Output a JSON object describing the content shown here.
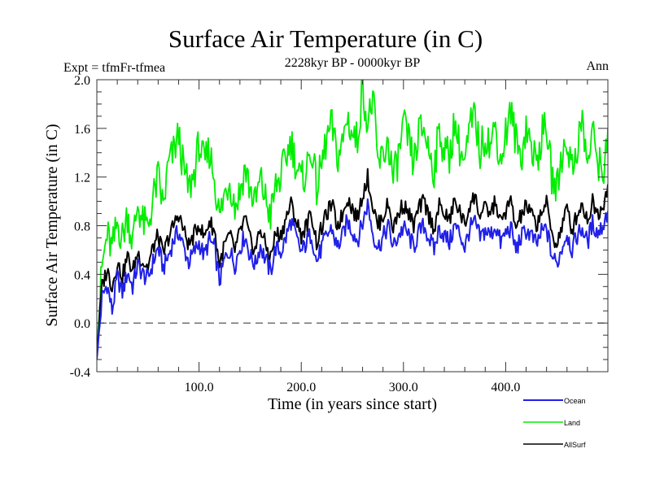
{
  "chart_data": {
    "type": "line",
    "title": "Surface Air Temperature (in C)",
    "subtitle": "2228kyr BP - 0000kyr BP",
    "left_annotation": "Expt = tfmFr-tfmea",
    "right_annotation": "Ann",
    "xlabel": "Time (in years since start)",
    "ylabel": "Surface Air Temperature (in C)",
    "xlim": [
      0,
      500
    ],
    "ylim": [
      -0.4,
      2.0
    ],
    "x_major_ticks": [
      100,
      200,
      300,
      400
    ],
    "x_tick_labels": [
      "100.0",
      "200.0",
      "300.0",
      "400.0"
    ],
    "x_minor_step": 20,
    "y_major_ticks": [
      -0.4,
      0.0,
      0.4,
      0.8,
      1.2,
      1.6,
      2.0
    ],
    "y_tick_labels": [
      "-0.4",
      "0.0",
      "0.4",
      "0.8",
      "1.2",
      "1.6",
      "2.0"
    ],
    "y_minor_step": 0.1,
    "reference_line": {
      "y": 0.0,
      "style": "dashed",
      "color": "#444444"
    },
    "grid": false,
    "legend_position": "bottom-right, below plot",
    "x": [
      0,
      5,
      10,
      15,
      20,
      25,
      30,
      35,
      40,
      45,
      50,
      55,
      60,
      65,
      70,
      75,
      80,
      85,
      90,
      95,
      100,
      105,
      110,
      115,
      120,
      125,
      130,
      135,
      140,
      145,
      150,
      155,
      160,
      165,
      170,
      175,
      180,
      185,
      190,
      195,
      200,
      205,
      210,
      215,
      220,
      225,
      230,
      235,
      240,
      245,
      250,
      255,
      260,
      265,
      270,
      275,
      280,
      285,
      290,
      295,
      300,
      305,
      310,
      315,
      320,
      325,
      330,
      335,
      340,
      345,
      350,
      355,
      360,
      365,
      370,
      375,
      380,
      385,
      390,
      395,
      400,
      405,
      410,
      415,
      420,
      425,
      430,
      435,
      440,
      445,
      450,
      455,
      460,
      465,
      470,
      475,
      480,
      485,
      490,
      495,
      500
    ],
    "series": [
      {
        "name": "Ocean",
        "color": "#2020e8",
        "values": [
          -0.3,
          0.2,
          0.32,
          0.1,
          0.38,
          0.25,
          0.42,
          0.3,
          0.48,
          0.4,
          0.36,
          0.5,
          0.62,
          0.45,
          0.55,
          0.68,
          0.75,
          0.62,
          0.5,
          0.58,
          0.66,
          0.55,
          0.68,
          0.62,
          0.34,
          0.52,
          0.6,
          0.48,
          0.62,
          0.72,
          0.55,
          0.48,
          0.64,
          0.52,
          0.42,
          0.62,
          0.58,
          0.7,
          0.84,
          0.7,
          0.58,
          0.66,
          0.74,
          0.5,
          0.62,
          0.72,
          0.78,
          0.62,
          0.7,
          0.84,
          0.76,
          0.68,
          0.82,
          0.98,
          0.74,
          0.62,
          0.7,
          0.8,
          0.62,
          0.72,
          0.78,
          0.72,
          0.62,
          0.74,
          0.8,
          0.7,
          0.6,
          0.78,
          0.72,
          0.66,
          0.8,
          0.74,
          0.62,
          0.78,
          0.82,
          0.7,
          0.76,
          0.72,
          0.8,
          0.66,
          0.74,
          0.78,
          0.6,
          0.7,
          0.76,
          0.72,
          0.64,
          0.74,
          0.78,
          0.56,
          0.48,
          0.62,
          0.74,
          0.6,
          0.72,
          0.78,
          0.66,
          0.82,
          0.74,
          0.8,
          0.92
        ]
      },
      {
        "name": "Land",
        "color": "#00ee00",
        "values": [
          -0.2,
          0.45,
          0.72,
          0.6,
          0.82,
          0.7,
          0.9,
          0.66,
          0.98,
          0.82,
          0.78,
          1.02,
          1.2,
          0.95,
          1.3,
          1.4,
          1.55,
          1.25,
          1.1,
          1.22,
          1.48,
          1.3,
          1.42,
          1.2,
          0.86,
          1.06,
          1.18,
          0.96,
          1.08,
          1.28,
          1.1,
          0.98,
          1.18,
          1.02,
          0.88,
          1.12,
          1.2,
          1.36,
          1.5,
          1.3,
          1.16,
          1.26,
          1.44,
          1.1,
          1.3,
          1.52,
          1.62,
          1.36,
          1.46,
          1.7,
          1.55,
          1.5,
          1.96,
          1.62,
          1.86,
          1.3,
          1.36,
          1.5,
          1.18,
          1.36,
          1.62,
          1.5,
          1.3,
          1.56,
          1.6,
          1.42,
          1.26,
          1.58,
          1.42,
          1.36,
          1.66,
          1.44,
          1.3,
          1.6,
          1.7,
          1.4,
          1.56,
          1.46,
          1.62,
          1.32,
          1.56,
          1.74,
          1.5,
          1.36,
          1.62,
          1.46,
          1.3,
          1.54,
          1.62,
          1.2,
          1.1,
          1.38,
          1.5,
          1.26,
          1.46,
          1.66,
          1.3,
          1.56,
          1.36,
          1.2,
          1.6
        ]
      },
      {
        "name": "AllSurf",
        "color": "#000000",
        "values": [
          -0.25,
          0.3,
          0.44,
          0.3,
          0.5,
          0.38,
          0.55,
          0.42,
          0.58,
          0.5,
          0.46,
          0.62,
          0.72,
          0.56,
          0.7,
          0.8,
          0.9,
          0.76,
          0.64,
          0.72,
          0.82,
          0.7,
          0.84,
          0.76,
          0.48,
          0.64,
          0.72,
          0.6,
          0.74,
          0.86,
          0.68,
          0.6,
          0.78,
          0.64,
          0.54,
          0.74,
          0.72,
          0.86,
          0.98,
          0.84,
          0.72,
          0.8,
          0.9,
          0.66,
          0.78,
          0.9,
          0.98,
          0.8,
          0.88,
          1.04,
          0.94,
          0.86,
          1.06,
          1.2,
          0.96,
          0.8,
          0.88,
          0.98,
          0.78,
          0.9,
          0.98,
          0.9,
          0.8,
          0.94,
          1.0,
          0.88,
          0.78,
          0.96,
          0.9,
          0.84,
          1.0,
          0.92,
          0.8,
          0.98,
          1.04,
          0.88,
          0.94,
          0.9,
          1.0,
          0.82,
          0.92,
          1.0,
          0.78,
          0.88,
          0.96,
          0.9,
          0.8,
          0.92,
          0.98,
          0.74,
          0.64,
          0.8,
          0.94,
          0.76,
          0.9,
          0.98,
          0.84,
          1.0,
          0.9,
          0.96,
          1.14
        ]
      }
    ]
  }
}
